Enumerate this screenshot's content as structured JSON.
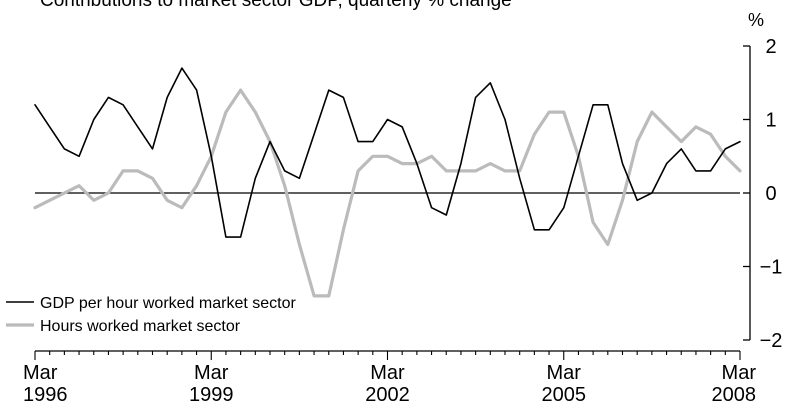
{
  "chart_data": {
    "type": "line",
    "title": "Contributions to market sector GDP, quarterly % change",
    "unit_label": "%",
    "ylim": [
      -2,
      2
    ],
    "y_ticks": [
      2,
      1,
      0,
      -1,
      -2
    ],
    "y_tick_labels": [
      "2",
      "1",
      "0",
      "−1",
      "−2"
    ],
    "x_ticks": [
      {
        "month": "Mar",
        "year": "1996",
        "date": "1996-03"
      },
      {
        "month": "Mar",
        "year": "1999",
        "date": "1999-03"
      },
      {
        "month": "Mar",
        "year": "2002",
        "date": "2002-03"
      },
      {
        "month": "Mar",
        "year": "2005",
        "date": "2005-03"
      },
      {
        "month": "Mar",
        "year": "2008",
        "date": "2008-03"
      }
    ],
    "x": [
      "1996-03",
      "1996-06",
      "1996-09",
      "1996-12",
      "1997-03",
      "1997-06",
      "1997-09",
      "1997-12",
      "1998-03",
      "1998-06",
      "1998-09",
      "1998-12",
      "1999-03",
      "1999-06",
      "1999-09",
      "1999-12",
      "2000-03",
      "2000-06",
      "2000-09",
      "2000-12",
      "2001-03",
      "2001-06",
      "2001-09",
      "2001-12",
      "2002-03",
      "2002-06",
      "2002-09",
      "2002-12",
      "2003-03",
      "2003-06",
      "2003-09",
      "2003-12",
      "2004-03",
      "2004-06",
      "2004-09",
      "2004-12",
      "2005-03",
      "2005-06",
      "2005-09",
      "2005-12",
      "2006-03",
      "2006-06",
      "2006-09",
      "2006-12",
      "2007-03",
      "2007-06",
      "2007-09",
      "2007-12",
      "2008-03"
    ],
    "series": [
      {
        "name": "GDP per hour worked market sector",
        "color": "#000000",
        "values": [
          1.2,
          0.9,
          0.6,
          0.5,
          1.0,
          1.3,
          1.2,
          0.9,
          0.6,
          1.3,
          1.7,
          1.4,
          0.5,
          -0.6,
          -0.6,
          0.2,
          0.7,
          0.3,
          0.2,
          0.8,
          1.4,
          1.3,
          0.7,
          0.7,
          1.0,
          0.9,
          0.4,
          -0.2,
          -0.3,
          0.4,
          1.3,
          1.5,
          1.0,
          0.2,
          -0.5,
          -0.5,
          -0.2,
          0.5,
          1.2,
          1.2,
          0.4,
          -0.1,
          0.0,
          0.4,
          0.6,
          0.3,
          0.3,
          0.6,
          0.7
        ]
      },
      {
        "name": "Hours worked market sector",
        "color": "#bbbbbb",
        "values": [
          -0.2,
          -0.1,
          0.0,
          0.1,
          -0.1,
          0.0,
          0.3,
          0.3,
          0.2,
          -0.1,
          -0.2,
          0.1,
          0.5,
          1.1,
          1.4,
          1.1,
          0.7,
          0.1,
          -0.7,
          -1.4,
          -1.4,
          -0.5,
          0.3,
          0.5,
          0.5,
          0.4,
          0.4,
          0.5,
          0.3,
          0.3,
          0.3,
          0.4,
          0.3,
          0.3,
          0.8,
          1.1,
          1.1,
          0.5,
          -0.4,
          -0.7,
          -0.1,
          0.7,
          1.1,
          0.9,
          0.7,
          0.9,
          0.8,
          0.5,
          0.3
        ]
      }
    ],
    "legend_position": "bottom-left",
    "grid": false
  }
}
